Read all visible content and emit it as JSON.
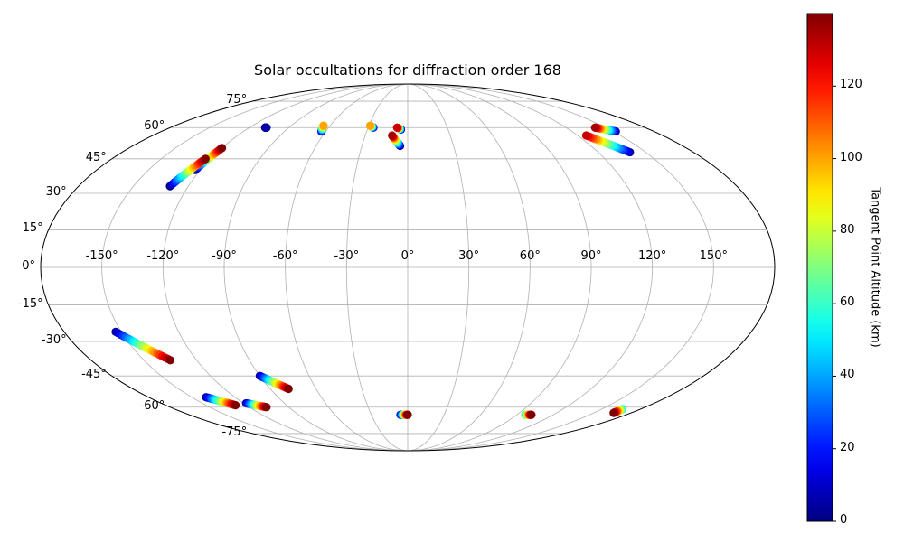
{
  "chart_data": {
    "type": "scatter",
    "title": "Solar occultations for diffraction order 168",
    "projection": "mollweide",
    "grid": true,
    "lat_ticks": [
      {
        "value": 75,
        "label": "75°"
      },
      {
        "value": 60,
        "label": "60°"
      },
      {
        "value": 45,
        "label": "45°"
      },
      {
        "value": 30,
        "label": "30°"
      },
      {
        "value": 15,
        "label": "15°"
      },
      {
        "value": 0,
        "label": "0°"
      },
      {
        "value": -15,
        "label": "-15°"
      },
      {
        "value": -30,
        "label": "-30°"
      },
      {
        "value": -45,
        "label": "-45°"
      },
      {
        "value": -60,
        "label": "-60°"
      },
      {
        "value": -75,
        "label": "-75°"
      }
    ],
    "lon_ticks": [
      {
        "value": -150,
        "label": "-150°"
      },
      {
        "value": -120,
        "label": "-120°"
      },
      {
        "value": -90,
        "label": "-90°"
      },
      {
        "value": -60,
        "label": "-60°"
      },
      {
        "value": -30,
        "label": "-30°"
      },
      {
        "value": 0,
        "label": "0°"
      },
      {
        "value": 30,
        "label": "30°"
      },
      {
        "value": 60,
        "label": "60°"
      },
      {
        "value": 90,
        "label": "90°"
      },
      {
        "value": 120,
        "label": "120°"
      },
      {
        "value": 150,
        "label": "150°"
      }
    ],
    "colorbar": {
      "label": "Tangent Point Altitude (km)",
      "colormap": "jet",
      "vmin": 0,
      "vmax": 140,
      "ticks": [
        0,
        20,
        40,
        60,
        80,
        100,
        120
      ]
    },
    "tracks": [
      {
        "lon_start": -123,
        "lat_start": 40,
        "alt_start": 0,
        "lon_end": -120,
        "lat_end": 50,
        "alt_end": 140
      },
      {
        "lon_start": -130,
        "lat_start": 33,
        "alt_start": 0,
        "lon_end": -123,
        "lat_end": 45,
        "alt_end": 140
      },
      {
        "lon_start": -108,
        "lat_start": 60,
        "alt_start": 5,
        "lon_end": -107,
        "lat_end": 60,
        "alt_end": 5
      },
      {
        "lon_start": -63,
        "lat_start": 58,
        "alt_start": 5,
        "lon_end": -65,
        "lat_end": 61,
        "alt_end": 100
      },
      {
        "lon_start": -26,
        "lat_start": 60,
        "alt_start": 5,
        "lon_end": -29,
        "lat_end": 61,
        "alt_end": 100
      },
      {
        "lon_start": -5,
        "lat_start": 59,
        "alt_start": 5,
        "lon_end": -8,
        "lat_end": 60,
        "alt_end": 130
      },
      {
        "lon_start": -5,
        "lat_start": 51,
        "alt_start": 5,
        "lon_end": -11,
        "lat_end": 56,
        "alt_end": 135
      },
      {
        "lon_start": 140,
        "lat_start": 48,
        "alt_start": 5,
        "lon_end": 126,
        "lat_end": 56,
        "alt_end": 130
      },
      {
        "lon_start": 152,
        "lat_start": 58,
        "alt_start": 5,
        "lon_end": 142,
        "lat_end": 60,
        "alt_end": 135
      },
      {
        "lon_start": -153,
        "lat_start": -26,
        "alt_start": 5,
        "lon_end": -135,
        "lat_end": -38,
        "alt_end": 140
      },
      {
        "lon_start": -90,
        "lat_start": -45,
        "alt_start": 5,
        "lon_end": -78,
        "lat_end": -51,
        "alt_end": 140
      },
      {
        "lon_start": -140,
        "lat_start": -55,
        "alt_start": 5,
        "lon_end": -128,
        "lat_end": -59,
        "alt_end": 140
      },
      {
        "lon_start": -118,
        "lat_start": -58,
        "alt_start": 5,
        "lon_end": -107,
        "lat_end": -60,
        "alt_end": 140
      },
      {
        "lon_start": -6,
        "lat_start": -64,
        "alt_start": 5,
        "lon_end": 0,
        "lat_end": -64,
        "alt_end": 140
      },
      {
        "lon_start": 97,
        "lat_start": -64,
        "alt_start": 50,
        "lon_end": 102,
        "lat_end": -64,
        "alt_end": 140
      },
      {
        "lon_start": 166,
        "lat_start": -61,
        "alt_start": 50,
        "lon_end": 166,
        "lat_end": -63,
        "alt_end": 140
      }
    ]
  }
}
